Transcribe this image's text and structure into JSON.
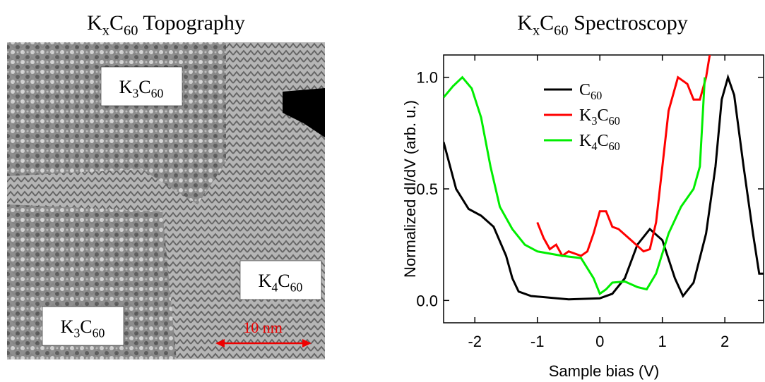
{
  "image": {
    "title": [
      {
        "t": "K"
      },
      {
        "s": "x"
      },
      {
        "t": "C"
      },
      {
        "s": "60"
      },
      {
        "t": " Topography"
      }
    ],
    "labels": [
      [
        {
          "t": "K"
        },
        {
          "s": "3"
        },
        {
          "t": "C"
        },
        {
          "s": "60"
        }
      ],
      [
        {
          "t": "K"
        },
        {
          "s": "4"
        },
        {
          "t": "C"
        },
        {
          "s": "60"
        }
      ],
      [
        {
          "t": "K"
        },
        {
          "s": "3"
        },
        {
          "t": "C"
        },
        {
          "s": "60"
        }
      ]
    ],
    "scale_bar": "10 nm"
  },
  "chart_data": {
    "type": "line",
    "title": [
      {
        "t": "K"
      },
      {
        "s": "x"
      },
      {
        "t": "C"
      },
      {
        "s": "60"
      },
      {
        "t": " Spectroscopy"
      }
    ],
    "x_label": "Sample bias (V)",
    "y_label": "Normalized dI/dV (arb. u.)",
    "xlim": [
      -2.5,
      2.62
    ],
    "ylim": [
      -0.1,
      1.1
    ],
    "xticks": [
      -2,
      -1,
      0,
      1,
      2
    ],
    "yticks": [
      {
        "value": 0,
        "label": "0.0"
      },
      {
        "value": 0.5,
        "label": "0.5"
      },
      {
        "value": 1,
        "label": "1.0"
      }
    ],
    "series": [
      {
        "name": [
          {
            "t": "C"
          },
          {
            "s": "60"
          }
        ],
        "color": "#000000",
        "x": [
          -2.5,
          -2.3,
          -2.1,
          -1.9,
          -1.7,
          -1.5,
          -1.4,
          -1.3,
          -1.1,
          -0.5,
          0,
          0.2,
          0.4,
          0.6,
          0.8,
          1.0,
          1.2,
          1.33,
          1.5,
          1.7,
          1.85,
          1.95,
          2.05,
          2.15,
          2.3,
          2.45,
          2.55,
          2.62
        ],
        "values": [
          0.71,
          0.5,
          0.41,
          0.38,
          0.33,
          0.2,
          0.1,
          0.04,
          0.02,
          0.005,
          0.01,
          0.03,
          0.1,
          0.25,
          0.32,
          0.27,
          0.1,
          0.02,
          0.08,
          0.3,
          0.6,
          0.9,
          1.0,
          0.92,
          0.6,
          0.3,
          0.12,
          0.12
        ]
      },
      {
        "name": [
          {
            "t": "K"
          },
          {
            "s": "3"
          },
          {
            "t": "C"
          },
          {
            "s": "60"
          }
        ],
        "color": "#ff0000",
        "x": [
          -1.0,
          -0.9,
          -0.8,
          -0.7,
          -0.6,
          -0.5,
          -0.3,
          -0.2,
          -0.1,
          0.0,
          0.1,
          0.2,
          0.3,
          0.5,
          0.7,
          0.8,
          0.9,
          1.0,
          1.1,
          1.25,
          1.4,
          1.5,
          1.6,
          1.7,
          1.77
        ],
        "values": [
          0.35,
          0.28,
          0.23,
          0.25,
          0.2,
          0.22,
          0.2,
          0.22,
          0.3,
          0.4,
          0.4,
          0.33,
          0.32,
          0.27,
          0.22,
          0.23,
          0.35,
          0.6,
          0.85,
          1.0,
          0.97,
          0.9,
          0.9,
          1.0,
          1.12
        ]
      },
      {
        "name": [
          {
            "t": "K"
          },
          {
            "s": "4"
          },
          {
            "t": "C"
          },
          {
            "s": "60"
          }
        ],
        "color": "#00ee00",
        "x": [
          -2.5,
          -2.35,
          -2.2,
          -2.05,
          -1.9,
          -1.75,
          -1.6,
          -1.4,
          -1.2,
          -1.0,
          -0.6,
          -0.3,
          -0.1,
          0,
          0.1,
          0.2,
          0.4,
          0.6,
          0.75,
          0.9,
          1.1,
          1.3,
          1.5,
          1.6,
          1.68
        ],
        "values": [
          0.91,
          0.96,
          1.0,
          0.95,
          0.82,
          0.6,
          0.42,
          0.32,
          0.25,
          0.22,
          0.2,
          0.19,
          0.1,
          0.03,
          0.05,
          0.08,
          0.085,
          0.06,
          0.05,
          0.12,
          0.3,
          0.42,
          0.5,
          0.6,
          1.0
        ]
      }
    ]
  }
}
